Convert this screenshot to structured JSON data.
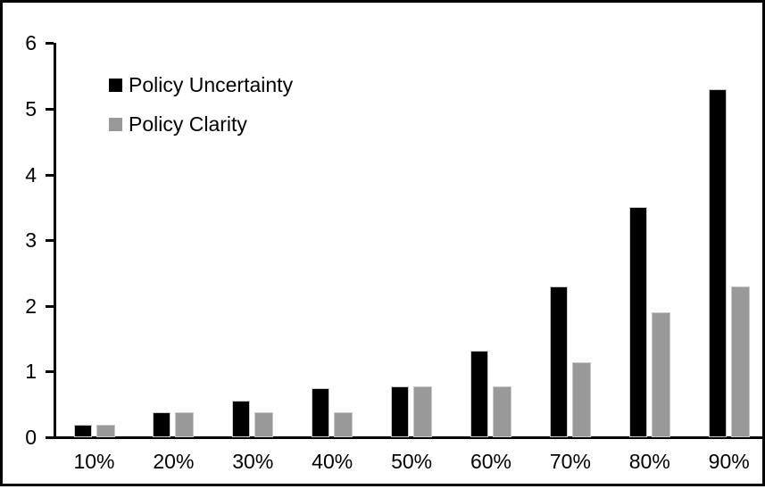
{
  "chart_data": {
    "type": "bar",
    "title": "",
    "xlabel": "",
    "ylabel": "",
    "categories": [
      "10%",
      "20%",
      "30%",
      "40%",
      "50%",
      "60%",
      "70%",
      "80%",
      "90%"
    ],
    "series": [
      {
        "name": "Policy Uncertainty",
        "color": "#000000",
        "values": [
          0.19,
          0.38,
          0.56,
          0.75,
          0.77,
          1.32,
          2.3,
          3.5,
          5.3
        ]
      },
      {
        "name": "Policy Clarity",
        "color": "#999999",
        "values": [
          0.19,
          0.38,
          0.38,
          0.38,
          0.77,
          0.77,
          1.14,
          1.9,
          2.3
        ]
      }
    ],
    "ylim": [
      0,
      6
    ],
    "yticks": [
      0,
      1,
      2,
      3,
      4,
      5,
      6
    ],
    "grid": false,
    "legend_position": "top-left-inside"
  },
  "colors": {
    "background": "#ffffff",
    "frame_border": "#000000",
    "axis": "#000000",
    "bar_outline": "#c8c8c8"
  }
}
